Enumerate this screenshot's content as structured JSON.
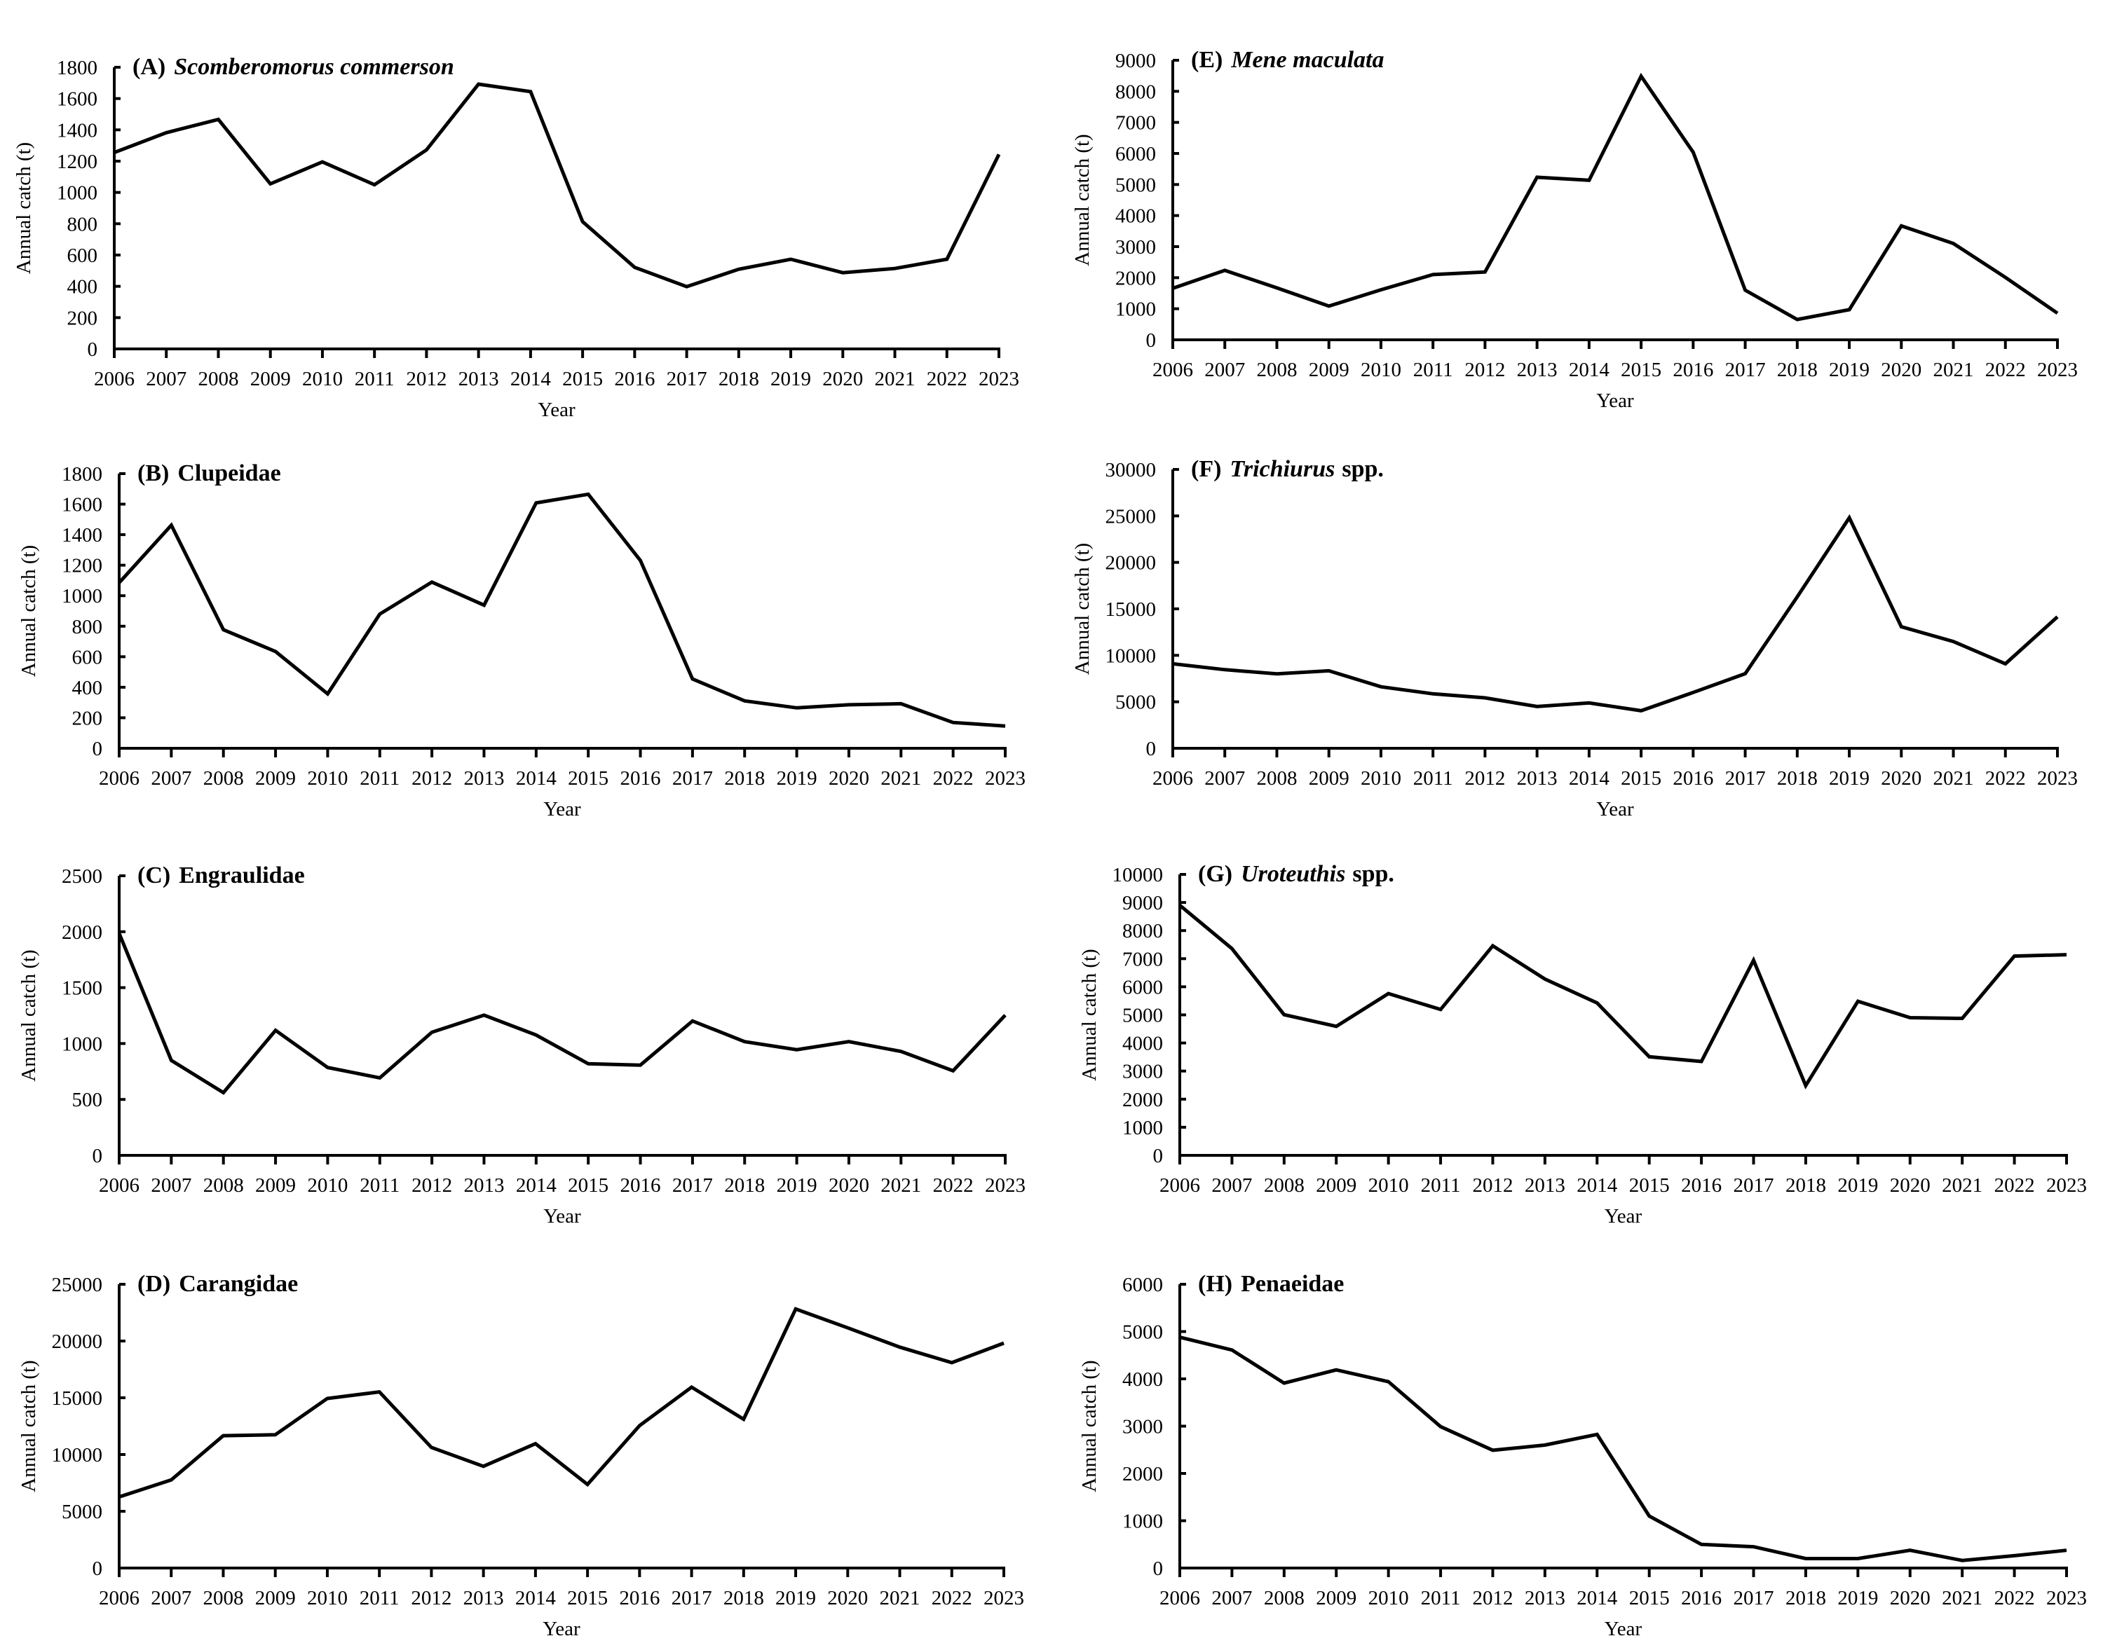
{
  "figure": {
    "line_color": "#000000",
    "background": "#ffffff"
  },
  "chart_data": [
    {
      "type": "line",
      "panel": "A",
      "title_prefix": "(A)",
      "title_taxon": "Scomberomorus commerson",
      "title_taxon_italic": true,
      "title_suffix": "",
      "xlabel": "Year",
      "ylabel": "Annual catch (t)",
      "x": [
        2006,
        2007,
        2008,
        2009,
        2010,
        2011,
        2012,
        2013,
        2014,
        2015,
        2016,
        2017,
        2018,
        2019,
        2020,
        2021,
        2022,
        2023
      ],
      "values": [
        1255,
        1382,
        1467,
        1055,
        1195,
        1049,
        1272,
        1692,
        1644,
        813,
        521,
        398,
        509,
        573,
        487,
        514,
        573,
        1243
      ],
      "ylim": [
        0,
        1800
      ],
      "yticks": [
        0,
        200,
        400,
        600,
        800,
        1000,
        1200,
        1400,
        1600,
        1800
      ],
      "grid": false,
      "legend": "none",
      "position": "top-left"
    },
    {
      "type": "line",
      "panel": "B",
      "title_prefix": "(B)",
      "title_taxon": "Clupeidae",
      "title_taxon_italic": false,
      "title_suffix": "",
      "xlabel": "Year",
      "ylabel": "Annual catch (t)",
      "x": [
        2006,
        2007,
        2008,
        2009,
        2010,
        2011,
        2012,
        2013,
        2014,
        2015,
        2016,
        2017,
        2018,
        2019,
        2020,
        2021,
        2022,
        2023
      ],
      "values": [
        1085,
        1462,
        777,
        634,
        357,
        880,
        1089,
        938,
        1608,
        1665,
        1231,
        454,
        311,
        265,
        285,
        292,
        169,
        146
      ],
      "ylim": [
        0,
        1800
      ],
      "yticks": [
        0,
        200,
        400,
        600,
        800,
        1000,
        1200,
        1400,
        1600,
        1800
      ],
      "grid": false,
      "legend": "none",
      "position": "second-row-left"
    },
    {
      "type": "line",
      "panel": "C",
      "title_prefix": "(C)",
      "title_taxon": "Engraulidae",
      "title_taxon_italic": false,
      "title_suffix": "",
      "xlabel": "Year",
      "ylabel": "Annual catch (t)",
      "x": [
        2006,
        2007,
        2008,
        2009,
        2010,
        2011,
        2012,
        2013,
        2014,
        2015,
        2016,
        2017,
        2018,
        2019,
        2020,
        2021,
        2022,
        2023
      ],
      "values": [
        1985,
        849,
        561,
        1118,
        786,
        693,
        1101,
        1254,
        1076,
        819,
        807,
        1202,
        1017,
        945,
        1017,
        929,
        756,
        1254
      ],
      "ylim": [
        0,
        2500
      ],
      "yticks": [
        0,
        500,
        1000,
        1500,
        2000,
        2500
      ],
      "grid": false,
      "legend": "none",
      "position": "third-row-left"
    },
    {
      "type": "line",
      "panel": "D",
      "title_prefix": "(D)",
      "title_taxon": "Carangidae",
      "title_taxon_italic": false,
      "title_suffix": "",
      "xlabel": "Year",
      "ylabel": "Annual catch (t)",
      "x": [
        2006,
        2007,
        2008,
        2009,
        2010,
        2011,
        2012,
        2013,
        2014,
        2015,
        2016,
        2017,
        2018,
        2019,
        2020,
        2021,
        2022,
        2023
      ],
      "values": [
        6266,
        7760,
        11660,
        11743,
        14938,
        15519,
        10622,
        8963,
        10954,
        7365,
        12552,
        15934,
        13112,
        22822,
        21162,
        19461,
        18091,
        19813
      ],
      "ylim": [
        0,
        25000
      ],
      "yticks": [
        0,
        5000,
        10000,
        15000,
        20000,
        25000
      ],
      "grid": false,
      "legend": "none",
      "position": "bottom-left"
    },
    {
      "type": "line",
      "panel": "E",
      "title_prefix": "(E)",
      "title_taxon": "Mene maculata",
      "title_taxon_italic": true,
      "title_suffix": "",
      "xlabel": "Year",
      "ylabel": "Annual catch (t)",
      "x": [
        2006,
        2007,
        2008,
        2009,
        2010,
        2011,
        2012,
        2013,
        2014,
        2015,
        2016,
        2017,
        2018,
        2019,
        2020,
        2021,
        2022,
        2023
      ],
      "values": [
        1657,
        2236,
        1672,
        1084,
        1611,
        2101,
        2184,
        5233,
        5136,
        8486,
        6039,
        1596,
        655,
        971,
        3667,
        3102,
        2010,
        858
      ],
      "ylim": [
        0,
        9000
      ],
      "yticks": [
        0,
        1000,
        2000,
        3000,
        4000,
        5000,
        6000,
        7000,
        8000,
        9000
      ],
      "grid": false,
      "legend": "none",
      "position": "top-right"
    },
    {
      "type": "line",
      "panel": "F",
      "title_prefix": "(F)",
      "title_taxon": "Trichiurus",
      "title_taxon_italic": true,
      "title_suffix": "spp.",
      "xlabel": "Year",
      "ylabel": "Annual catch (t)",
      "x": [
        2006,
        2007,
        2008,
        2009,
        2010,
        2011,
        2012,
        2013,
        2014,
        2015,
        2016,
        2017,
        2018,
        2019,
        2020,
        2021,
        2022,
        2023
      ],
      "values": [
        9091,
        8460,
        8005,
        8333,
        6616,
        5859,
        5429,
        4495,
        4874,
        4040,
        6010,
        8030,
        16288,
        24798,
        13081,
        11490,
        9091,
        14141
      ],
      "ylim": [
        0,
        30000
      ],
      "yticks": [
        0,
        5000,
        10000,
        15000,
        20000,
        25000,
        30000
      ],
      "grid": false,
      "legend": "none",
      "position": "second-row-right"
    },
    {
      "type": "line",
      "panel": "G",
      "title_prefix": "(G)",
      "title_taxon": "Uroteuthis",
      "title_taxon_italic": true,
      "title_suffix": "spp.",
      "xlabel": "Year",
      "ylabel": "Annual catch (t)",
      "x": [
        2006,
        2007,
        2008,
        2009,
        2010,
        2011,
        2012,
        2013,
        2014,
        2015,
        2016,
        2017,
        2018,
        2019,
        2020,
        2021,
        2022,
        2023
      ],
      "values": [
        8900,
        7358,
        5008,
        4592,
        5758,
        5192,
        7458,
        6275,
        5425,
        3508,
        3342,
        6942,
        2483,
        5483,
        4900,
        4875,
        7092,
        7142
      ],
      "ylim": [
        0,
        10000
      ],
      "yticks": [
        0,
        1000,
        2000,
        3000,
        4000,
        5000,
        6000,
        7000,
        8000,
        9000,
        10000
      ],
      "grid": false,
      "legend": "none",
      "position": "third-row-right"
    },
    {
      "type": "line",
      "panel": "H",
      "title_prefix": "(H)",
      "title_taxon": "Penaeidae",
      "title_taxon_italic": false,
      "title_suffix": "",
      "xlabel": "Year",
      "ylabel": "Annual catch (t)",
      "x": [
        2006,
        2007,
        2008,
        2009,
        2010,
        2011,
        2012,
        2013,
        2014,
        2015,
        2016,
        2017,
        2018,
        2019,
        2020,
        2021,
        2022,
        2023
      ],
      "values": [
        4880,
        4610,
        3910,
        4190,
        3940,
        2990,
        2490,
        2600,
        2825,
        1100,
        500,
        450,
        200,
        200,
        375,
        160,
        260,
        375
      ],
      "ylim": [
        0,
        6000
      ],
      "yticks": [
        0,
        1000,
        2000,
        3000,
        4000,
        5000,
        6000
      ],
      "grid": false,
      "legend": "none",
      "position": "bottom-right"
    }
  ]
}
